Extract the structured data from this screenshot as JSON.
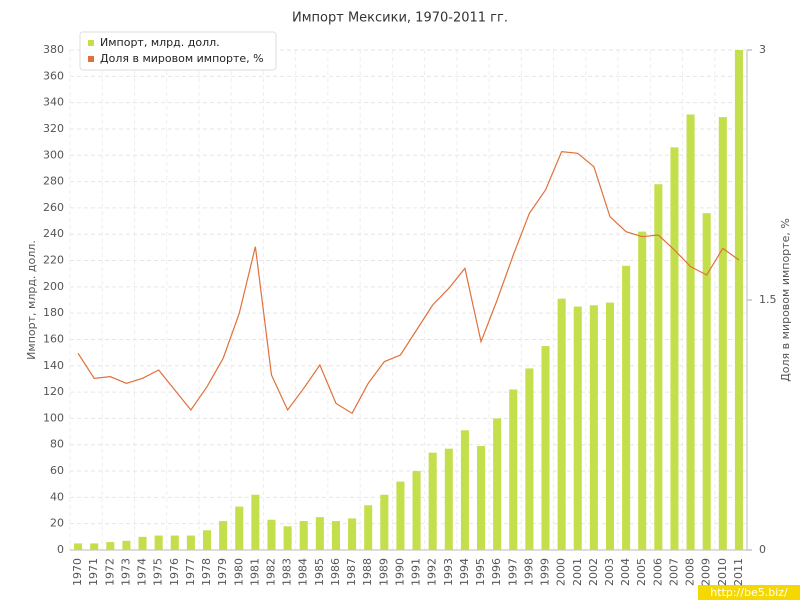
{
  "chart_data": {
    "type": "bar",
    "title": "Импорт Мексики, 1970-2011 гг.",
    "y_label": "Импорт, млрд. долл.",
    "y2_label": "Доля в мировом импорте, %",
    "watermark": "http://be5.biz/",
    "categories": [
      "1970",
      "1971",
      "1972",
      "1973",
      "1974",
      "1975",
      "1976",
      "1977",
      "1978",
      "1979",
      "1980",
      "1981",
      "1982",
      "1983",
      "1984",
      "1985",
      "1986",
      "1987",
      "1988",
      "1989",
      "1990",
      "1991",
      "1992",
      "1993",
      "1994",
      "1995",
      "1996",
      "1997",
      "1998",
      "1999",
      "2000",
      "2001",
      "2002",
      "2003",
      "2004",
      "2005",
      "2006",
      "2007",
      "2008",
      "2009",
      "2010",
      "2011"
    ],
    "series": [
      {
        "name": "Импорт, млрд. долл.",
        "type": "bar",
        "color": "#c4df4c",
        "values": [
          5,
          5,
          6,
          7,
          10,
          11,
          11,
          11,
          15,
          22,
          33,
          42,
          23,
          18,
          22,
          25,
          22,
          24,
          34,
          42,
          52,
          60,
          74,
          77,
          91,
          79,
          100,
          122,
          138,
          155,
          191,
          185,
          186,
          188,
          216,
          242,
          278,
          306,
          331,
          256,
          329,
          380
        ]
      },
      {
        "name": "Доля в мировом импорте, %",
        "type": "line",
        "axis": "y2",
        "color": "#e0703c",
        "values": [
          1.18,
          1.03,
          1.04,
          1.0,
          1.03,
          1.08,
          0.96,
          0.84,
          0.98,
          1.15,
          1.42,
          1.82,
          1.05,
          0.84,
          0.97,
          1.11,
          0.88,
          0.82,
          1.0,
          1.13,
          1.17,
          1.32,
          1.47,
          1.57,
          1.69,
          1.25,
          1.5,
          1.77,
          2.02,
          2.16,
          2.39,
          2.38,
          2.3,
          2.0,
          1.91,
          1.88,
          1.89,
          1.8,
          1.7,
          1.65,
          1.81,
          1.74
        ]
      }
    ],
    "ylim": [
      0,
      380
    ],
    "yticks": [
      0,
      20,
      40,
      60,
      80,
      100,
      120,
      140,
      160,
      180,
      200,
      220,
      240,
      260,
      280,
      300,
      320,
      340,
      360,
      380
    ],
    "y2lim": [
      0,
      3
    ],
    "y2ticks": [
      0,
      1.5,
      3
    ],
    "grid": true,
    "legend": "top-left"
  }
}
